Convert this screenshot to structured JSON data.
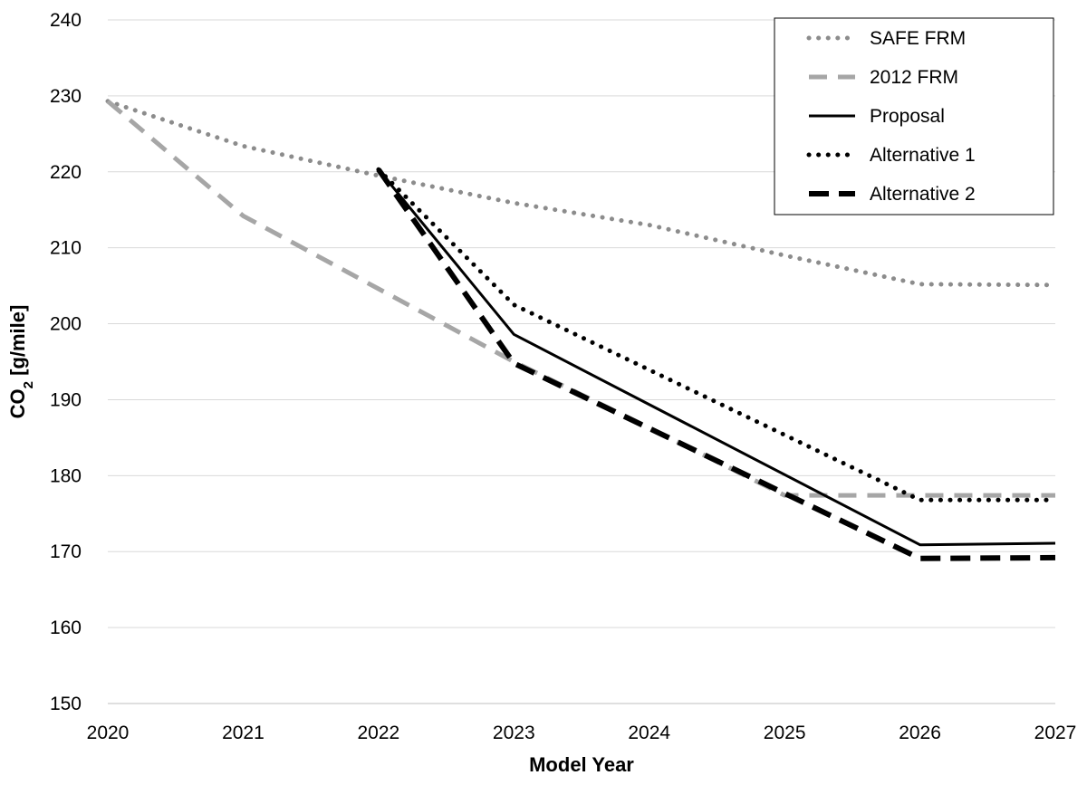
{
  "chart_data": {
    "type": "line",
    "title": "",
    "xlabel": "Model Year",
    "ylabel": {
      "main": "CO",
      "subscript": "2",
      "rest": " [g/mile]"
    },
    "xlim": [
      2020,
      2027
    ],
    "ylim": [
      150,
      240
    ],
    "x_ticks": [
      "2020",
      "2021",
      "2022",
      "2023",
      "2024",
      "2025",
      "2026",
      "2027"
    ],
    "y_ticks": [
      "150",
      "160",
      "170",
      "180",
      "190",
      "200",
      "210",
      "220",
      "230",
      "240"
    ],
    "grid": "horizontal",
    "legend_position": "top-right",
    "series": [
      {
        "name": "SAFE FRM",
        "color": "#8c8c8c",
        "style": "dotted",
        "x": [
          2020,
          2021,
          2022,
          2023,
          2024,
          2025,
          2026,
          2027
        ],
        "y": [
          229.3,
          223.4,
          219.5,
          215.9,
          213.0,
          209.0,
          205.2,
          205.1
        ]
      },
      {
        "name": "2012 FRM",
        "color": "#a6a6a6",
        "style": "dashed",
        "x": [
          2020,
          2021,
          2022,
          2023,
          2024,
          2025,
          2026,
          2027
        ],
        "y": [
          229.3,
          214.2,
          204.6,
          195.0,
          186.3,
          177.4,
          177.4,
          177.4
        ]
      },
      {
        "name": "Proposal",
        "color": "#000000",
        "style": "solid",
        "x": [
          2022,
          2023,
          2026,
          2027
        ],
        "y": [
          220.3,
          198.6,
          170.9,
          171.1
        ]
      },
      {
        "name": "Alternative 1",
        "color": "#000000",
        "style": "dotted",
        "x": [
          2022,
          2023,
          2026,
          2027
        ],
        "y": [
          220.3,
          202.5,
          176.8,
          176.8
        ]
      },
      {
        "name": "Alternative 2",
        "color": "#000000",
        "style": "bold-dashed",
        "x": [
          2022,
          2023,
          2026,
          2027
        ],
        "y": [
          220.3,
          194.8,
          169.1,
          169.2
        ]
      }
    ]
  }
}
